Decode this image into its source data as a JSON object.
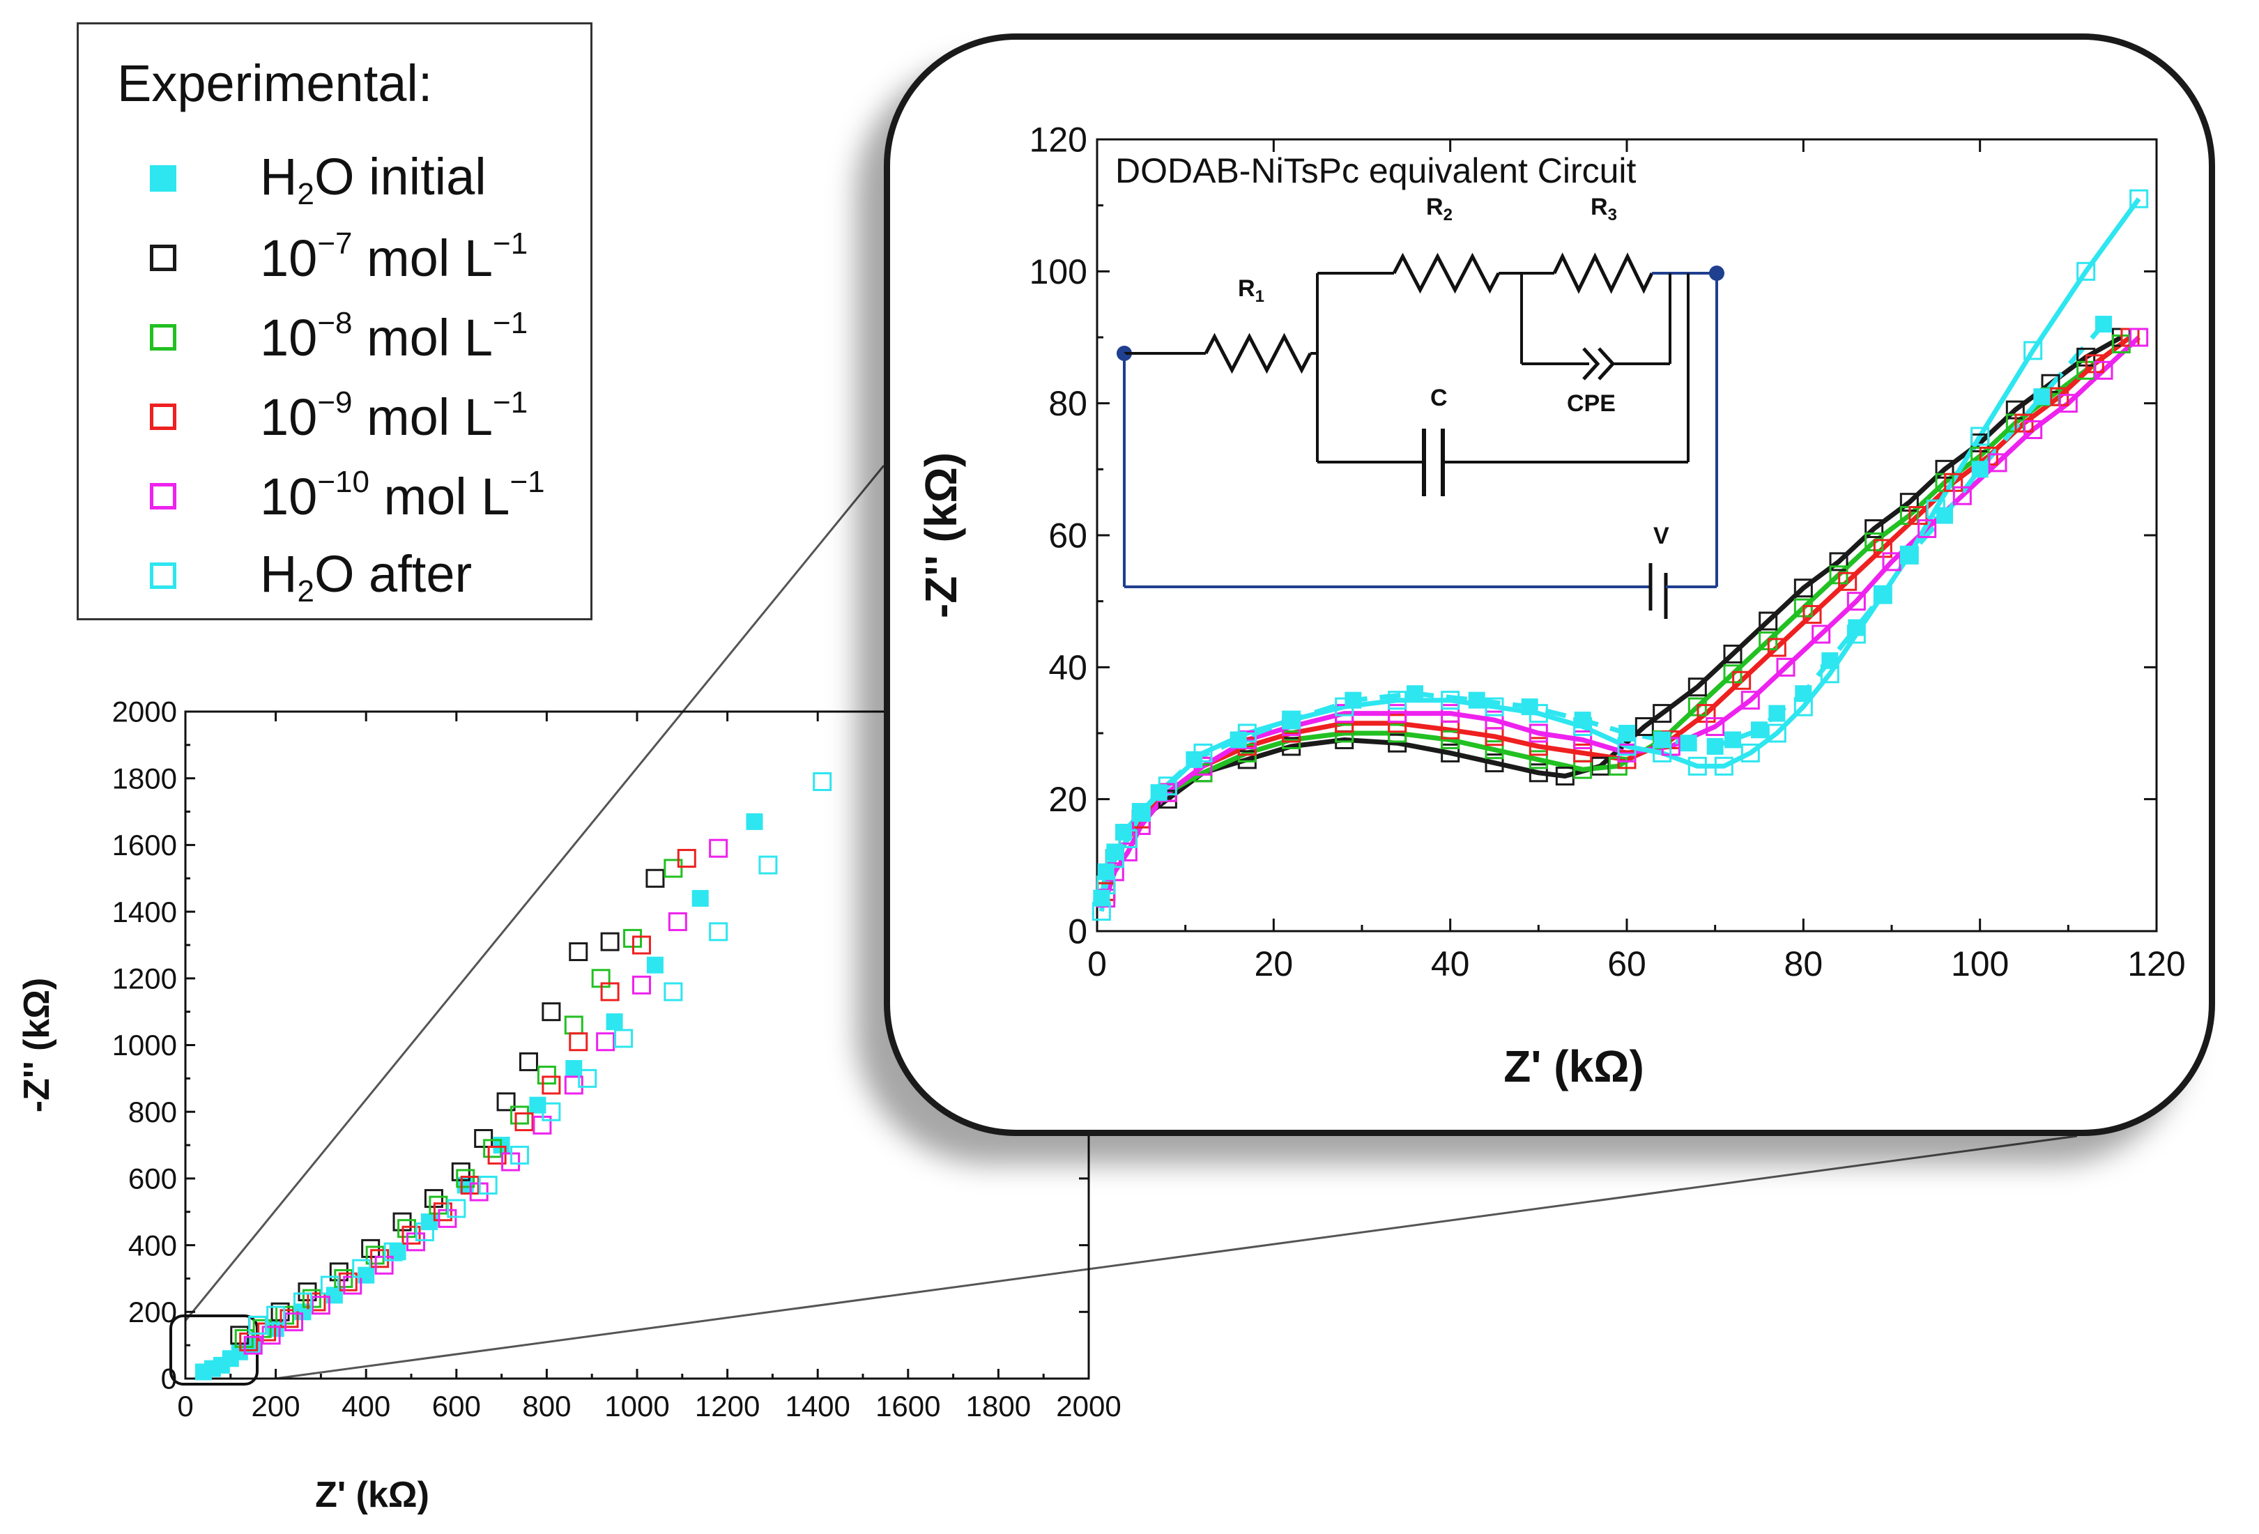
{
  "legend": {
    "title": "Experimental:",
    "items": [
      {
        "main": "H",
        "sub": "2",
        "rest": "O initial",
        "symbol": "filled-square",
        "color": "#2EE6F0"
      },
      {
        "main": "10",
        "sup": "−7",
        "rest": " mol L",
        "sup2": "−1",
        "symbol": "open-square",
        "color": "#1a1a1a"
      },
      {
        "main": "10",
        "sup": "−8",
        "rest": " mol L",
        "sup2": "−1",
        "symbol": "open-square",
        "color": "#22C022"
      },
      {
        "main": "10",
        "sup": "−9",
        "rest": " mol L",
        "sup2": "−1",
        "symbol": "open-square",
        "color": "#EE2020"
      },
      {
        "main": "10",
        "sup": "−10",
        "rest": " mol L",
        "sup2": "−1",
        "symbol": "open-square",
        "color": "#EE22EE"
      },
      {
        "main": "H",
        "sub": "2",
        "rest": "O after",
        "symbol": "open-square",
        "color": "#2EE6F0"
      }
    ]
  },
  "chart_data": [
    {
      "type": "scatter",
      "name": "main",
      "xlabel": "Z' (kΩ)",
      "ylabel": "-Z'' (kΩ)",
      "xlim": [
        0,
        2000
      ],
      "ylim": [
        0,
        2000
      ],
      "xticks": [
        "0",
        "200",
        "400",
        "600",
        "800",
        "1000",
        "1200",
        "1400",
        "1600",
        "1800",
        "2000"
      ],
      "yticks": [
        "0",
        "200",
        "400",
        "600",
        "800",
        "1000",
        "1200",
        "1400",
        "1600",
        "1800",
        "2000"
      ],
      "series": [
        {
          "name": "H2O initial",
          "color": "#2EE6F0",
          "filled": true,
          "x": [
            40,
            60,
            80,
            100,
            120,
            150,
            200,
            260,
            330,
            400,
            470,
            540,
            620,
            700,
            780,
            860,
            950,
            1040,
            1140,
            1260
          ],
          "y": [
            20,
            30,
            40,
            60,
            80,
            100,
            150,
            200,
            250,
            310,
            380,
            470,
            580,
            700,
            820,
            930,
            1070,
            1240,
            1440,
            1670
          ]
        },
        {
          "name": "1e-7",
          "color": "#1a1a1a",
          "filled": false,
          "x": [
            120,
            160,
            210,
            270,
            340,
            410,
            480,
            550,
            610,
            660,
            710,
            760,
            810,
            870,
            940,
            1040
          ],
          "y": [
            130,
            160,
            200,
            260,
            320,
            390,
            470,
            540,
            620,
            720,
            830,
            950,
            1100,
            1280,
            1310,
            1500
          ]
        },
        {
          "name": "1e-8",
          "color": "#22C022",
          "filled": false,
          "x": [
            130,
            170,
            220,
            280,
            350,
            420,
            490,
            560,
            620,
            680,
            740,
            800,
            860,
            920,
            990,
            1080
          ],
          "y": [
            120,
            150,
            190,
            240,
            300,
            370,
            450,
            520,
            600,
            690,
            790,
            910,
            1060,
            1200,
            1320,
            1530
          ]
        },
        {
          "name": "1e-9",
          "color": "#EE2020",
          "filled": false,
          "x": [
            140,
            180,
            230,
            290,
            360,
            430,
            500,
            570,
            630,
            690,
            750,
            810,
            870,
            940,
            1010,
            1110
          ],
          "y": [
            110,
            140,
            180,
            230,
            290,
            360,
            430,
            500,
            580,
            670,
            770,
            880,
            1010,
            1160,
            1300,
            1560
          ]
        },
        {
          "name": "1e-10",
          "color": "#EE22EE",
          "filled": false,
          "x": [
            150,
            190,
            240,
            300,
            370,
            440,
            510,
            580,
            650,
            720,
            790,
            860,
            930,
            1010,
            1090,
            1180
          ],
          "y": [
            100,
            130,
            170,
            220,
            280,
            340,
            410,
            480,
            560,
            650,
            760,
            880,
            1010,
            1180,
            1370,
            1590
          ]
        },
        {
          "name": "H2O after",
          "color": "#2EE6F0",
          "filled": false,
          "x": [
            160,
            200,
            260,
            320,
            390,
            460,
            530,
            600,
            670,
            740,
            810,
            890,
            970,
            1080,
            1180,
            1290,
            1410
          ],
          "y": [
            160,
            190,
            230,
            280,
            330,
            380,
            440,
            510,
            580,
            670,
            800,
            900,
            1020,
            1160,
            1340,
            1540,
            1790
          ]
        }
      ]
    },
    {
      "type": "scatter",
      "name": "inset",
      "title": "DODAB-NiTsPc equivalent Circuit",
      "xlabel": "Z' (kΩ)",
      "ylabel": "-Z'' (kΩ)",
      "xlim": [
        0,
        120
      ],
      "ylim": [
        0,
        120
      ],
      "xticks": [
        "0",
        "20",
        "40",
        "60",
        "80",
        "100",
        "120"
      ],
      "yticks": [
        "0",
        "20",
        "40",
        "60",
        "80",
        "100",
        "120"
      ],
      "series": [
        {
          "name": "1e-7",
          "color": "#1a1a1a",
          "filled": false,
          "fit": "solid",
          "x": [
            1,
            2,
            3.5,
            5,
            8,
            12,
            17,
            22,
            28,
            34,
            40,
            45,
            50,
            53,
            57,
            62,
            64,
            68,
            72,
            76,
            80,
            84,
            88,
            92,
            96,
            100,
            104,
            108,
            112,
            116
          ],
          "y": [
            6,
            11,
            14,
            17,
            20,
            24,
            26,
            28,
            29,
            28.5,
            27,
            25.5,
            24,
            23.5,
            25,
            31,
            33,
            37,
            42,
            47,
            52,
            56,
            61,
            65,
            70,
            74,
            79,
            83,
            87,
            90
          ]
        },
        {
          "name": "1e-8",
          "color": "#22C022",
          "filled": false,
          "fit": "solid",
          "x": [
            1,
            2,
            3.5,
            5,
            8,
            12,
            17,
            22,
            28,
            34,
            40,
            45,
            50,
            55,
            59,
            64,
            68,
            72,
            76,
            80,
            84,
            88,
            92,
            96,
            100,
            104,
            108,
            112,
            116
          ],
          "y": [
            6,
            11,
            14,
            17,
            21,
            24,
            27,
            29,
            30,
            30,
            29,
            27.5,
            26,
            24.5,
            25,
            29,
            34,
            39,
            44,
            49,
            54,
            59,
            63,
            68,
            72,
            77,
            81,
            85,
            89
          ]
        },
        {
          "name": "1e-9",
          "color": "#EE2020",
          "filled": false,
          "fit": "solid",
          "x": [
            1,
            2,
            3.5,
            5,
            8,
            12,
            17,
            22,
            28,
            34,
            40,
            45,
            50,
            55,
            60,
            65,
            69,
            73,
            77,
            81,
            85,
            89,
            93,
            97,
            101,
            105,
            109,
            113,
            117
          ],
          "y": [
            6,
            11,
            14,
            17,
            21,
            25,
            28,
            30,
            31.5,
            31.5,
            30.5,
            29.5,
            28,
            27,
            26,
            29,
            33,
            38,
            43,
            48,
            53,
            58,
            63,
            68,
            72,
            77,
            81,
            86,
            90
          ]
        },
        {
          "name": "1e-10",
          "color": "#EE22EE",
          "filled": false,
          "fit": "solid",
          "x": [
            1,
            2,
            3.5,
            5,
            8,
            12,
            17,
            22,
            28,
            34,
            40,
            45,
            50,
            55,
            60,
            65,
            70,
            74,
            78,
            82,
            86,
            90,
            94,
            98,
            102,
            106,
            110,
            114,
            118
          ],
          "y": [
            5,
            9,
            12,
            16,
            21,
            25,
            29,
            31,
            33,
            33,
            33,
            32,
            30,
            29,
            27,
            28,
            31,
            35,
            40,
            45,
            50,
            56,
            61,
            66,
            71,
            76,
            80,
            85,
            90
          ]
        },
        {
          "name": "H2O after",
          "color": "#2EE6F0",
          "filled": false,
          "fit": "solid",
          "x": [
            0.5,
            1,
            2,
            3.5,
            5,
            8,
            12,
            17,
            22,
            28,
            34,
            40,
            45,
            50,
            55,
            60,
            64,
            68,
            71,
            74,
            77,
            80,
            83,
            86,
            89,
            92,
            95,
            100,
            106,
            112,
            118
          ],
          "y": [
            3,
            7,
            11,
            14,
            18,
            22,
            27,
            30,
            32,
            34,
            35,
            35,
            34,
            33,
            31,
            28,
            27,
            25,
            25,
            27,
            30,
            34,
            39,
            45,
            51,
            57,
            64,
            75,
            88,
            100,
            111
          ]
        },
        {
          "name": "H2O initial",
          "color": "#2EE6F0",
          "filled": true,
          "fit": "dashed",
          "x": [
            0.5,
            1,
            2,
            3,
            5,
            7,
            11,
            16,
            22,
            29,
            36,
            43,
            49,
            55,
            60,
            64,
            67,
            70,
            72,
            75,
            77,
            80,
            83,
            86,
            89,
            92,
            96,
            100,
            107,
            114
          ],
          "y": [
            5,
            9,
            12,
            15,
            18,
            21,
            26,
            29,
            32,
            35,
            36,
            35,
            34,
            32,
            30,
            29,
            28.5,
            28,
            29,
            30.5,
            33,
            36,
            41,
            46,
            51,
            57,
            63,
            70,
            81,
            92
          ]
        }
      ]
    }
  ],
  "circuit": {
    "labels": {
      "r1": "R",
      "r1_sub": "1",
      "r2": "R",
      "r2_sub": "2",
      "r3": "R",
      "r3_sub": "3",
      "cpe": "CPE",
      "c": "C",
      "v": "V"
    },
    "color": "#1F3F8F"
  }
}
